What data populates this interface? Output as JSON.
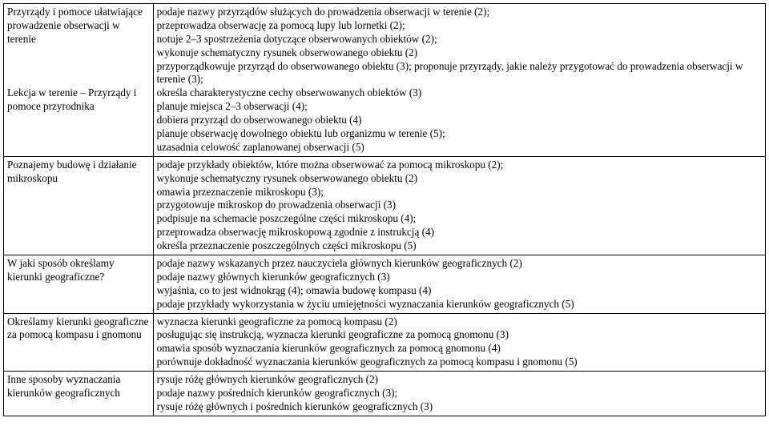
{
  "rows": [
    {
      "left": "Przyrządy i pomoce ułatwiające prowadzenie obserwacji w terenie\n\n\n\nLekcja w terenie – Przyrządy i pomoce przyrodnika",
      "right": "podaje nazwy przyrządów służących do prowadzenia obserwacji w terenie (2);\nprzeprowadza obserwację za pomocą lupy lub lornetki (2);\nnotuje 2–3 spostrzeżenia dotyczące obserwowanych obiektów (2);\nwykonuje schematyczny rysunek obserwowanego obiektu (2)\nprzyporządkowuje przyrząd do obserwowanego obiektu (3); proponuje przyrządy, jakie należy przygotować do prowadzenia obserwacji w terenie (3);\nokreśla charakterystyczne cechy obserwowanych obiektów (3)\nplanuje miejsca 2–3 obserwacji (4);\ndobiera przyrząd do obserwowanego obiektu (4)\nplanuje obserwację dowolnego obiektu lub organizmu w terenie (5);\nuzasadnia celowość zaplanowanej obserwacji (5)"
    },
    {
      "left": "Poznajemy budowę i działanie mikroskopu",
      "right": "podaje przykłady obiektów, które można obserwować za pomocą mikroskopu (2);\nwykonuje schematyczny rysunek obserwowanego obiektu (2)\nomawia przeznaczenie mikroskopu (3);\nprzygotowuje mikroskop do prowadzenia obserwacji (3)\npodpisuje na schemacie poszczególne części mikroskopu (4);\nprzeprowadza obserwację mikroskopową zgodnie z instrukcją (4)\nokreśla przeznaczenie poszczególnych części mikroskopu (5)"
    },
    {
      "left": "W jaki sposób określamy kierunki geograficzne?",
      "right": "podaje nazwy wskazanych przez nauczyciela głównych kierunków geograficznych (2)\npodaje nazwy głównych kierunków geograficznych (3)\nwyjaśnia, co to jest widnokrąg (4); omawia budowę kompasu (4)\npodaje przykłady wykorzystania w życiu umiejętności wyznaczania kierunków geograficznych (5)"
    },
    {
      "left": "Określamy kierunki geograficzne za pomocą kompasu i gnomonu",
      "right": "wyznacza kierunki geograficzne za pomocą kompasu (2)\nposługując się instrukcją, wyznacza kierunki geograficzne za pomocą gnomonu (3)\nomawia sposób wyznaczania kierunków geograficznych za pomocą gnomonu (4)\nporównuje dokładność wyznaczania kierunków geograficznych za pomocą kompasu i gnomonu (5)"
    },
    {
      "left": "Inne sposoby wyznaczania kierunków geograficznych",
      "right": "rysuje różę głównych kierunków geograficznych (2)\npodaje nazwy pośrednich kierunków geograficznych (3);\nrysuje różę głównych i pośrednich kierunków geograficznych (3)"
    }
  ]
}
